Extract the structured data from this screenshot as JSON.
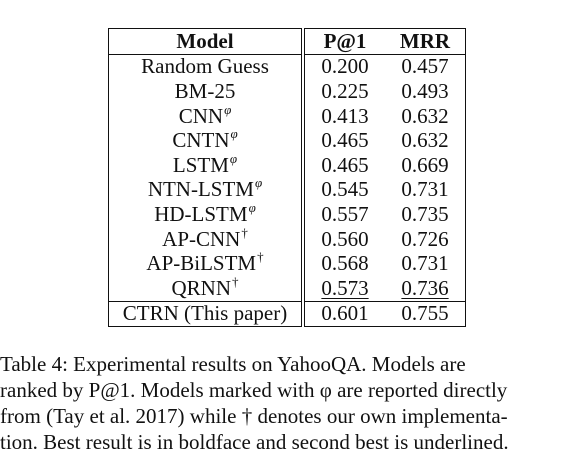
{
  "table": {
    "headers": [
      "Model",
      "P@1",
      "MRR"
    ],
    "rows": [
      {
        "model": "Random Guess",
        "marker": "",
        "p1": "0.200",
        "mrr": "0.457"
      },
      {
        "model": "BM-25",
        "marker": "",
        "p1": "0.225",
        "mrr": "0.493"
      },
      {
        "model": "CNN",
        "marker": "φ",
        "p1": "0.413",
        "mrr": "0.632"
      },
      {
        "model": "CNTN",
        "marker": "φ",
        "p1": "0.465",
        "mrr": "0.632"
      },
      {
        "model": "LSTM",
        "marker": "φ",
        "p1": "0.465",
        "mrr": "0.669"
      },
      {
        "model": "NTN-LSTM",
        "marker": "φ",
        "p1": "0.545",
        "mrr": "0.731"
      },
      {
        "model": "HD-LSTM",
        "marker": "φ",
        "p1": "0.557",
        "mrr": "0.735"
      },
      {
        "model": "AP-CNN",
        "marker": "†",
        "p1": "0.560",
        "mrr": "0.726"
      },
      {
        "model": "AP-BiLSTM",
        "marker": "†",
        "p1": "0.568",
        "mrr": "0.731"
      },
      {
        "model": "QRNN",
        "marker": "†",
        "p1": "0.573",
        "mrr": "0.736"
      }
    ],
    "final_row": {
      "model": "CTRN (This paper)",
      "p1": "0.601",
      "mrr": "0.755"
    }
  },
  "caption": {
    "lines": [
      "Table 4: Experimental results on YahooQA. Models are",
      "ranked by P@1. Models marked with φ are reported directly",
      "from (Tay et al. 2017) while † denotes our own implementa-",
      "tion. Best result is in boldface and second best is underlined."
    ]
  }
}
